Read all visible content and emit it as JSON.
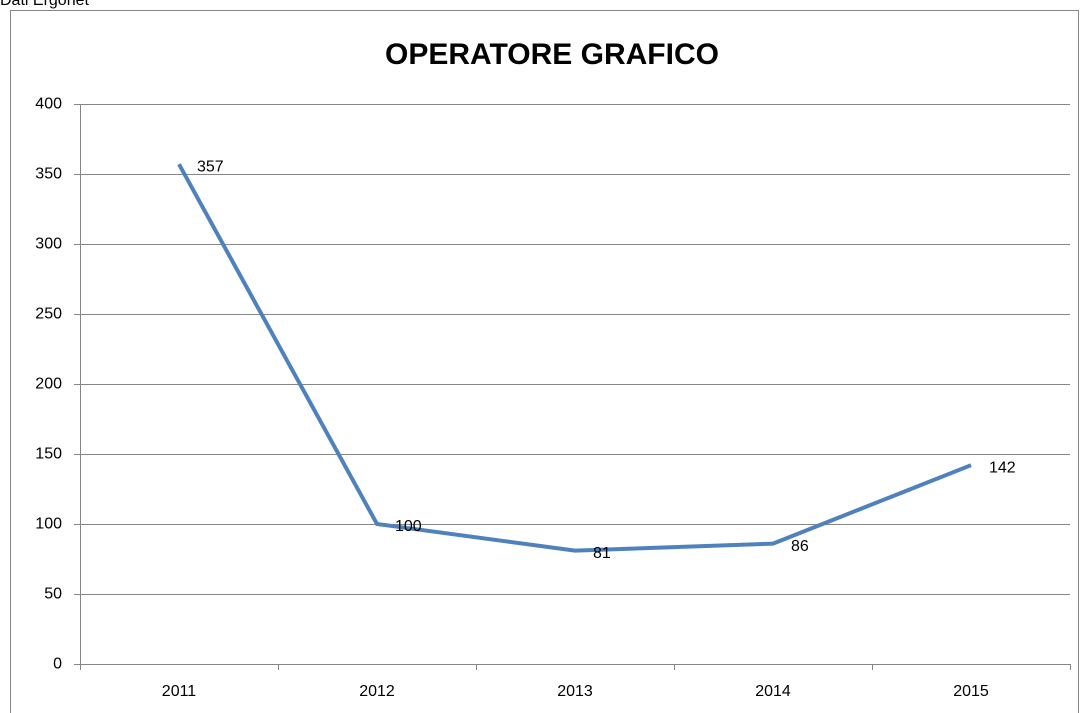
{
  "source": "Dati Ergonet",
  "chart_data": {
    "type": "line",
    "title": "OPERATORE GRAFICO",
    "categories": [
      "2011",
      "2012",
      "2013",
      "2014",
      "2015"
    ],
    "values": [
      357,
      100,
      81,
      86,
      142
    ],
    "color": "#4f81bd",
    "ylim": [
      0,
      400
    ],
    "yticks": [
      0,
      50,
      100,
      150,
      200,
      250,
      300,
      350,
      400
    ],
    "grid": true
  }
}
